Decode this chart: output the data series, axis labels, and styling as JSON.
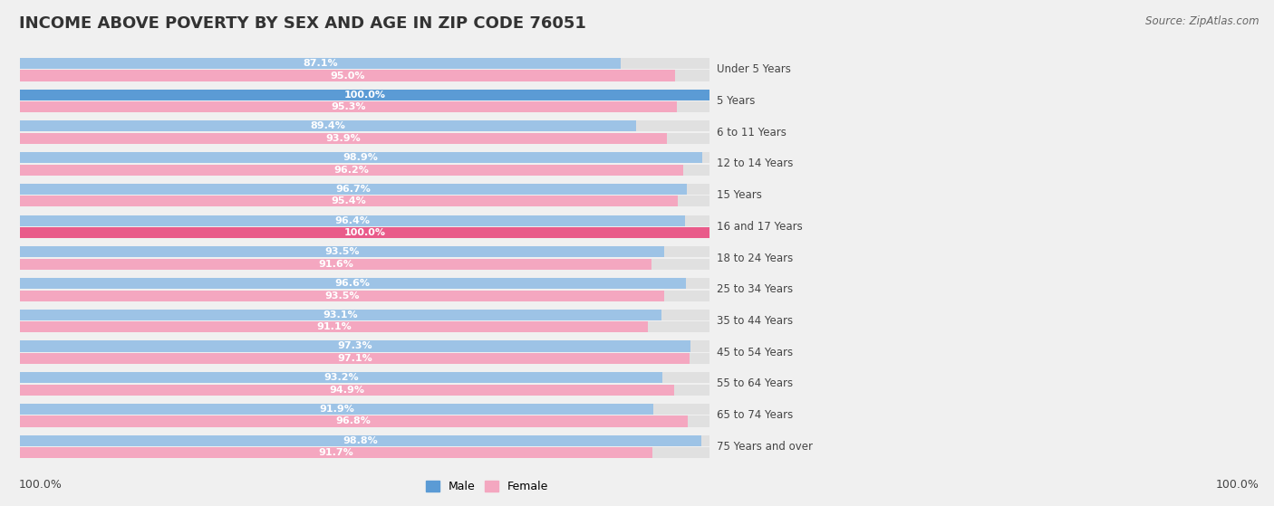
{
  "title": "INCOME ABOVE POVERTY BY SEX AND AGE IN ZIP CODE 76051",
  "source": "Source: ZipAtlas.com",
  "categories": [
    "Under 5 Years",
    "5 Years",
    "6 to 11 Years",
    "12 to 14 Years",
    "15 Years",
    "16 and 17 Years",
    "18 to 24 Years",
    "25 to 34 Years",
    "35 to 44 Years",
    "45 to 54 Years",
    "55 to 64 Years",
    "65 to 74 Years",
    "75 Years and over"
  ],
  "male_values": [
    87.1,
    100.0,
    89.4,
    98.9,
    96.7,
    96.4,
    93.5,
    96.6,
    93.1,
    97.3,
    93.2,
    91.9,
    98.8
  ],
  "female_values": [
    95.0,
    95.3,
    93.9,
    96.2,
    95.4,
    100.0,
    91.6,
    93.5,
    91.1,
    97.1,
    94.9,
    96.8,
    91.7
  ],
  "male_color_dark": "#5b9bd5",
  "male_color_light": "#9dc3e6",
  "female_color_dark": "#e95b8a",
  "female_color_light": "#f4a7c0",
  "bg_color": "#f0f0f0",
  "bar_bg_color": "#e0e0e0",
  "legend_male_color": "#5b9bd5",
  "legend_female_color": "#f4a7c0",
  "bottom_value_male": "100.0%",
  "bottom_value_female": "100.0%",
  "title_fontsize": 13,
  "bar_height": 0.35,
  "max_value": 100
}
